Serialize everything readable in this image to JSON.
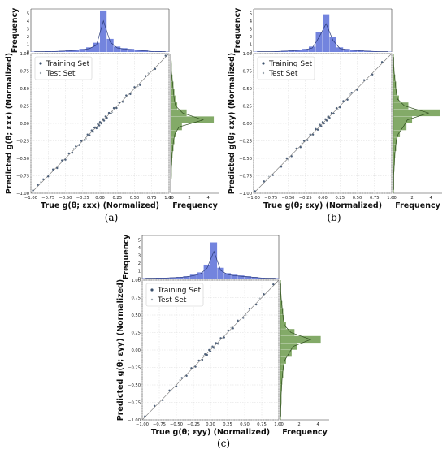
{
  "chart_data": [
    {
      "type": "scatter",
      "panel": "(a)",
      "xlabel": "True g(θ; εxx) (Normalized)",
      "ylabel": "Predicted g(θ; εxx) (Normalized)",
      "top_hist_ylabel": "Frequency",
      "right_hist_xlabel": "Frequency",
      "xlim": [
        -1.0,
        1.0
      ],
      "ylim": [
        -1.0,
        1.0
      ],
      "x_ticks": [
        "−1.00",
        "−0.75",
        "−0.50",
        "−0.25",
        "0.00",
        "0.25",
        "0.50",
        "0.75",
        "1.00"
      ],
      "y_ticks": [
        "−1.00",
        "−0.75",
        "−0.50",
        "−0.25",
        "0.00",
        "0.25",
        "0.50",
        "0.75",
        "1.00"
      ],
      "top_hist_ticks": [
        "0",
        "1",
        "2",
        "3",
        "4",
        "5"
      ],
      "right_hist_ticks": [
        "0",
        "2",
        "4"
      ],
      "legend": [
        "Training Set",
        "Test Set"
      ],
      "legend_position": "upper-left",
      "grid": true,
      "series": [
        {
          "name": "Training Set",
          "color": "#3a4f6b",
          "x": [
            -0.97,
            -0.9,
            -0.82,
            -0.75,
            -0.68,
            -0.62,
            -0.55,
            -0.5,
            -0.45,
            -0.4,
            -0.35,
            -0.3,
            -0.27,
            -0.22,
            -0.18,
            -0.15,
            -0.12,
            -0.1,
            -0.08,
            -0.05,
            -0.03,
            -0.01,
            0.0,
            0.02,
            0.04,
            0.06,
            0.08,
            0.1,
            0.13,
            0.16,
            0.2,
            0.24,
            0.28,
            0.33,
            0.38,
            0.44,
            0.5,
            0.58,
            0.66,
            0.8,
            0.95
          ],
          "y": [
            -0.96,
            -0.88,
            -0.8,
            -0.76,
            -0.66,
            -0.64,
            -0.53,
            -0.52,
            -0.43,
            -0.42,
            -0.33,
            -0.31,
            -0.25,
            -0.24,
            -0.16,
            -0.17,
            -0.1,
            -0.12,
            -0.06,
            -0.07,
            -0.01,
            -0.03,
            0.02,
            0.0,
            0.06,
            0.04,
            0.1,
            0.08,
            0.15,
            0.14,
            0.22,
            0.22,
            0.3,
            0.31,
            0.4,
            0.42,
            0.52,
            0.55,
            0.68,
            0.78,
            0.97
          ]
        },
        {
          "name": "Test Set",
          "color": "#9aa4ad",
          "x": [
            -0.86,
            -0.6,
            -0.38,
            -0.2,
            -0.07,
            0.05,
            0.18,
            0.35,
            0.55,
            0.7
          ],
          "y": [
            -0.84,
            -0.62,
            -0.36,
            -0.22,
            -0.05,
            0.07,
            0.16,
            0.37,
            0.53,
            0.72
          ]
        }
      ],
      "top_hist": {
        "bins": [
          -1.0,
          -0.9,
          -0.8,
          -0.7,
          -0.6,
          -0.5,
          -0.4,
          -0.3,
          -0.2,
          -0.1,
          0.0,
          0.1,
          0.2,
          0.3,
          0.4,
          0.5,
          0.6,
          0.7,
          0.8,
          0.9
        ],
        "counts": [
          0.05,
          0.05,
          0.1,
          0.1,
          0.15,
          0.2,
          0.3,
          0.4,
          0.6,
          1.2,
          5.4,
          1.7,
          0.7,
          0.5,
          0.4,
          0.3,
          0.2,
          0.1,
          0.1,
          0.05
        ],
        "color": "#5a6fd8"
      },
      "right_hist": {
        "bins": [
          -1.0,
          -0.9,
          -0.8,
          -0.7,
          -0.6,
          -0.5,
          -0.4,
          -0.3,
          -0.2,
          -0.1,
          0.0,
          0.1,
          0.2,
          0.3,
          0.4,
          0.5,
          0.6,
          0.7,
          0.8,
          0.9
        ],
        "counts": [
          0.05,
          0.05,
          0.1,
          0.1,
          0.15,
          0.2,
          0.3,
          0.4,
          0.6,
          1.2,
          4.6,
          1.7,
          0.7,
          0.5,
          0.4,
          0.3,
          0.2,
          0.1,
          0.1,
          0.05
        ],
        "color": "#6d9b4e"
      }
    },
    {
      "type": "scatter",
      "panel": "(b)",
      "xlabel": "True g(θ; εxy) (Normalized)",
      "ylabel": "Predicted g(θ; εxy) (Normalized)",
      "top_hist_ylabel": "Frequency",
      "right_hist_xlabel": "Frequency",
      "xlim": [
        -1.0,
        1.0
      ],
      "ylim": [
        -1.0,
        1.0
      ],
      "x_ticks": [
        "−1.00",
        "−0.75",
        "−0.50",
        "−0.25",
        "0.00",
        "0.25",
        "0.50",
        "0.75",
        "1.00"
      ],
      "y_ticks": [
        "−1.00",
        "−0.75",
        "−0.50",
        "−0.25",
        "0.00",
        "0.25",
        "0.50",
        "0.75",
        "1.00"
      ],
      "top_hist_ticks": [
        "0",
        "1",
        "2",
        "3",
        "4",
        "5"
      ],
      "right_hist_ticks": [
        "0",
        "2",
        "4"
      ],
      "legend": [
        "Training Set",
        "Test Set"
      ],
      "legend_position": "upper-left",
      "grid": true,
      "series": [
        {
          "name": "Training Set",
          "color": "#3a4f6b",
          "x": [
            -0.98,
            -0.85,
            -0.72,
            -0.6,
            -0.52,
            -0.45,
            -0.38,
            -0.32,
            -0.27,
            -0.22,
            -0.18,
            -0.14,
            -0.1,
            -0.07,
            -0.04,
            -0.02,
            0.0,
            0.02,
            0.04,
            0.06,
            0.08,
            0.1,
            0.13,
            0.16,
            0.2,
            0.25,
            0.3,
            0.36,
            0.42,
            0.5,
            0.6,
            0.72,
            0.86
          ],
          "y": [
            -0.97,
            -0.83,
            -0.74,
            -0.62,
            -0.5,
            -0.47,
            -0.36,
            -0.34,
            -0.25,
            -0.24,
            -0.16,
            -0.16,
            -0.08,
            -0.09,
            -0.02,
            -0.04,
            0.02,
            0.0,
            0.06,
            0.04,
            0.1,
            0.08,
            0.15,
            0.14,
            0.22,
            0.23,
            0.32,
            0.34,
            0.44,
            0.48,
            0.62,
            0.7,
            0.88
          ]
        },
        {
          "name": "Test Set",
          "color": "#9aa4ad",
          "x": [
            -0.78,
            -0.5,
            -0.3,
            -0.15,
            -0.05,
            0.07,
            0.22,
            0.4,
            0.65
          ],
          "y": [
            -0.76,
            -0.52,
            -0.28,
            -0.17,
            -0.03,
            0.09,
            0.2,
            0.42,
            0.63
          ]
        }
      ],
      "top_hist": {
        "bins": [
          -1.0,
          -0.9,
          -0.8,
          -0.7,
          -0.6,
          -0.5,
          -0.4,
          -0.3,
          -0.2,
          -0.1,
          0.0,
          0.1,
          0.2,
          0.3,
          0.4,
          0.5,
          0.6,
          0.7,
          0.8,
          0.9
        ],
        "counts": [
          0.05,
          0.05,
          0.05,
          0.1,
          0.15,
          0.2,
          0.3,
          0.4,
          0.7,
          2.6,
          4.9,
          2.0,
          0.6,
          0.4,
          0.3,
          0.2,
          0.15,
          0.1,
          0.05,
          0.05
        ],
        "color": "#5a6fd8"
      },
      "right_hist": {
        "bins": [
          -1.0,
          -0.9,
          -0.8,
          -0.7,
          -0.6,
          -0.5,
          -0.4,
          -0.3,
          -0.2,
          -0.1,
          0.0,
          0.1,
          0.2,
          0.3,
          0.4,
          0.5,
          0.6,
          0.7,
          0.8,
          0.9
        ],
        "counts": [
          0.05,
          0.05,
          0.05,
          0.1,
          0.15,
          0.2,
          0.3,
          0.4,
          0.7,
          1.4,
          2.0,
          5.0,
          1.6,
          0.6,
          0.4,
          0.3,
          0.2,
          0.1,
          0.05,
          0.05
        ],
        "color": "#6d9b4e"
      }
    },
    {
      "type": "scatter",
      "panel": "(c)",
      "xlabel": "True g(θ; εyy) (Normalized)",
      "ylabel": "Predicted g(θ; εyy) (Normalized)",
      "top_hist_ylabel": "Frequency",
      "right_hist_xlabel": "Frequency",
      "xlim": [
        -1.0,
        1.0
      ],
      "ylim": [
        -1.0,
        1.0
      ],
      "x_ticks": [
        "−1.00",
        "−0.75",
        "−0.50",
        "−0.25",
        "0.00",
        "0.25",
        "0.50",
        "0.75",
        "1.00"
      ],
      "y_ticks": [
        "−1.00",
        "−0.75",
        "−0.50",
        "−0.25",
        "0.00",
        "0.25",
        "0.50",
        "0.75",
        "1.00"
      ],
      "top_hist_ticks": [
        "0",
        "1",
        "2",
        "3",
        "4",
        "5"
      ],
      "right_hist_ticks": [
        "0",
        "2",
        "4"
      ],
      "legend": [
        "Training Set",
        "Test Set"
      ],
      "legend_position": "upper-left",
      "grid": true,
      "series": [
        {
          "name": "Training Set",
          "color": "#3a4f6b",
          "x": [
            -0.96,
            -0.82,
            -0.7,
            -0.6,
            -0.5,
            -0.42,
            -0.35,
            -0.28,
            -0.22,
            -0.17,
            -0.12,
            -0.08,
            -0.05,
            -0.02,
            0.0,
            0.03,
            0.05,
            0.08,
            0.11,
            0.15,
            0.2,
            0.26,
            0.33,
            0.4,
            0.48,
            0.57,
            0.67,
            0.78,
            0.92
          ],
          "y": [
            -0.95,
            -0.8,
            -0.72,
            -0.58,
            -0.52,
            -0.4,
            -0.37,
            -0.26,
            -0.24,
            -0.15,
            -0.14,
            -0.06,
            -0.07,
            0.0,
            -0.02,
            0.05,
            0.03,
            0.1,
            0.09,
            0.17,
            0.18,
            0.28,
            0.31,
            0.42,
            0.46,
            0.59,
            0.65,
            0.8,
            0.94
          ]
        },
        {
          "name": "Test Set",
          "color": "#9aa4ad",
          "x": [
            -0.75,
            -0.45,
            -0.25,
            -0.1,
            0.02,
            0.12,
            0.3,
            0.52,
            0.72
          ],
          "y": [
            -0.77,
            -0.43,
            -0.27,
            -0.08,
            0.04,
            0.1,
            0.32,
            0.5,
            0.74
          ]
        }
      ],
      "top_hist": {
        "bins": [
          -1.0,
          -0.9,
          -0.8,
          -0.7,
          -0.6,
          -0.5,
          -0.4,
          -0.3,
          -0.2,
          -0.1,
          0.0,
          0.1,
          0.2,
          0.3,
          0.4,
          0.5,
          0.6,
          0.7,
          0.8,
          0.9
        ],
        "counts": [
          0.05,
          0.05,
          0.1,
          0.1,
          0.15,
          0.2,
          0.3,
          0.5,
          0.8,
          1.8,
          4.7,
          1.4,
          0.7,
          0.5,
          0.4,
          0.3,
          0.2,
          0.1,
          0.05,
          0.05
        ],
        "color": "#5a6fd8"
      },
      "right_hist": {
        "bins": [
          -1.0,
          -0.9,
          -0.8,
          -0.7,
          -0.6,
          -0.5,
          -0.4,
          -0.3,
          -0.2,
          -0.1,
          0.0,
          0.1,
          0.2,
          0.3,
          0.4,
          0.5,
          0.6,
          0.7,
          0.8,
          0.9
        ],
        "counts": [
          0.05,
          0.05,
          0.1,
          0.1,
          0.15,
          0.2,
          0.3,
          0.4,
          0.6,
          1.2,
          1.8,
          4.3,
          1.5,
          0.6,
          0.4,
          0.3,
          0.2,
          0.1,
          0.05,
          0.05
        ],
        "color": "#6d9b4e"
      }
    }
  ]
}
